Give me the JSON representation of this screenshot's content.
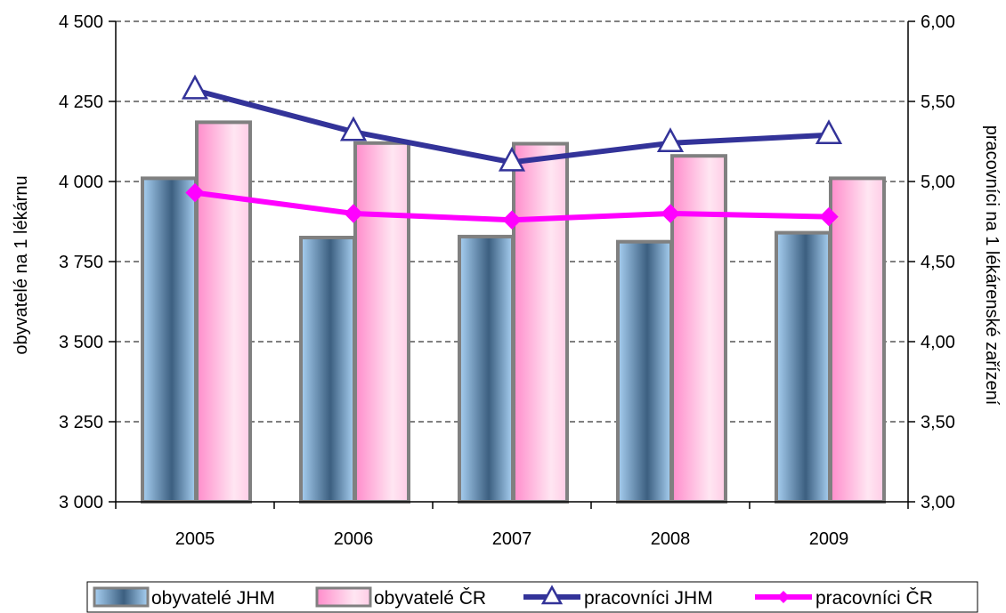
{
  "chart_data": {
    "type": "bar",
    "categories": [
      "2005",
      "2006",
      "2007",
      "2008",
      "2009"
    ],
    "ylabel": "obyvatelé na 1 lékárnu",
    "y2label": "pracovníci na 1 lékárenské zařízení",
    "ylim": [
      3000,
      4500
    ],
    "y2lim": [
      3.0,
      6.0
    ],
    "yticks": [
      "3 000",
      "3 250",
      "3 500",
      "3 750",
      "4 000",
      "4 250",
      "4 500"
    ],
    "y2ticks": [
      "3,00",
      "3,50",
      "4,00",
      "4,50",
      "5,00",
      "5,50",
      "6,00"
    ],
    "grid": true,
    "legend_position": "bottom",
    "series": [
      {
        "name": "obyvatelé JHM",
        "kind": "bar",
        "axis": "left",
        "values": [
          4010,
          3825,
          3828,
          3812,
          3840
        ],
        "color": "#4f81bd"
      },
      {
        "name": "obyvatelé ČR",
        "kind": "bar",
        "axis": "left",
        "values": [
          4185,
          4120,
          4118,
          4080,
          4010
        ],
        "color": "#ff99cc"
      },
      {
        "name": "pracovníci JHM",
        "kind": "line",
        "axis": "right",
        "marker": "triangle",
        "values": [
          5.57,
          5.31,
          5.12,
          5.24,
          5.29
        ],
        "color": "#333399"
      },
      {
        "name": "pracovníci ČR",
        "kind": "line",
        "axis": "right",
        "marker": "diamond",
        "values": [
          4.93,
          4.8,
          4.76,
          4.8,
          4.78
        ],
        "color": "#ff00ff"
      }
    ]
  }
}
